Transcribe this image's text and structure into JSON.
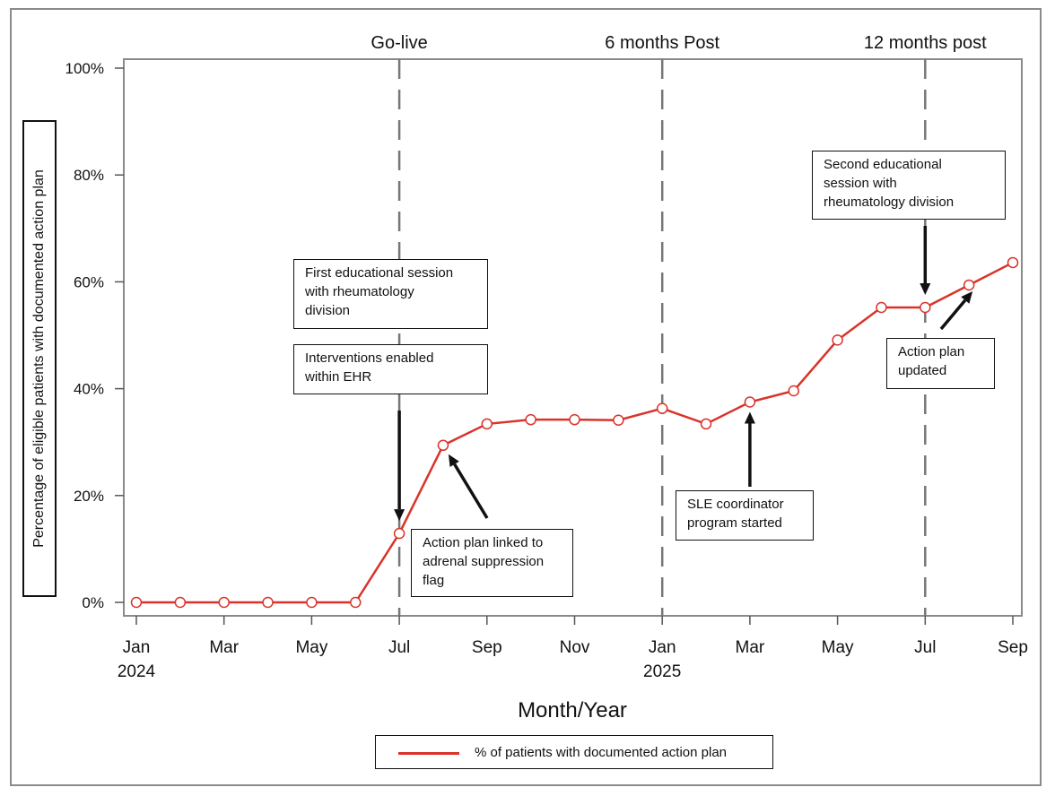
{
  "chart_data": {
    "type": "line",
    "xlabel": "Month/Year",
    "ylabel": "Percentage of  eligible patients with documented action plan",
    "ylim": [
      0,
      100
    ],
    "yticks": [
      "0%",
      "20%",
      "40%",
      "60%",
      "80%",
      "100%"
    ],
    "x": [
      "2024-01",
      "2024-02",
      "2024-03",
      "2024-04",
      "2024-05",
      "2024-06",
      "2024-07",
      "2024-08",
      "2024-09",
      "2024-10",
      "2024-11",
      "2024-12",
      "2025-01",
      "2025-02",
      "2025-03",
      "2025-04",
      "2025-05",
      "2025-06",
      "2025-07",
      "2025-08",
      "2025-09"
    ],
    "xtick_labels": [
      {
        "month": "Jan",
        "year": "2024"
      },
      {
        "month": "Mar",
        "year": ""
      },
      {
        "month": "May",
        "year": ""
      },
      {
        "month": "Jul",
        "year": ""
      },
      {
        "month": "Sep",
        "year": ""
      },
      {
        "month": "Nov",
        "year": ""
      },
      {
        "month": "Jan",
        "year": "2025"
      },
      {
        "month": "Mar",
        "year": ""
      },
      {
        "month": "May",
        "year": ""
      },
      {
        "month": "Jul",
        "year": ""
      },
      {
        "month": "Sep",
        "year": ""
      }
    ],
    "series": [
      {
        "name": "% of patients with documented action plan",
        "color": "#d9332a",
        "marker": "open-circle",
        "values": [
          0,
          0,
          0,
          0,
          0,
          0,
          12.9,
          29.4,
          33.4,
          34.2,
          34.2,
          34.1,
          36.3,
          33.4,
          37.5,
          39.6,
          49.1,
          55.2,
          55.2,
          59.4,
          63.6
        ]
      }
    ],
    "reference_lines": [
      {
        "x": "2024-07",
        "label": "Go-live"
      },
      {
        "x": "2025-01",
        "label": "6 months Post"
      },
      {
        "x": "2025-07",
        "label": "12 months post"
      }
    ],
    "annotations": [
      {
        "text": "First educational session\nwith rheumatology\ndivision"
      },
      {
        "text": "Interventions enabled\nwithin EHR"
      },
      {
        "text": "Action plan linked to\nadrenal suppression\nflag"
      },
      {
        "text": "SLE coordinator\nprogram started"
      },
      {
        "text": "Second educational\nsession with\nrheumatology division"
      },
      {
        "text": "Action plan\nupdated"
      }
    ],
    "legend": {
      "placement": "bottom-center",
      "label": "% of patients with documented action plan"
    },
    "grid": false
  }
}
